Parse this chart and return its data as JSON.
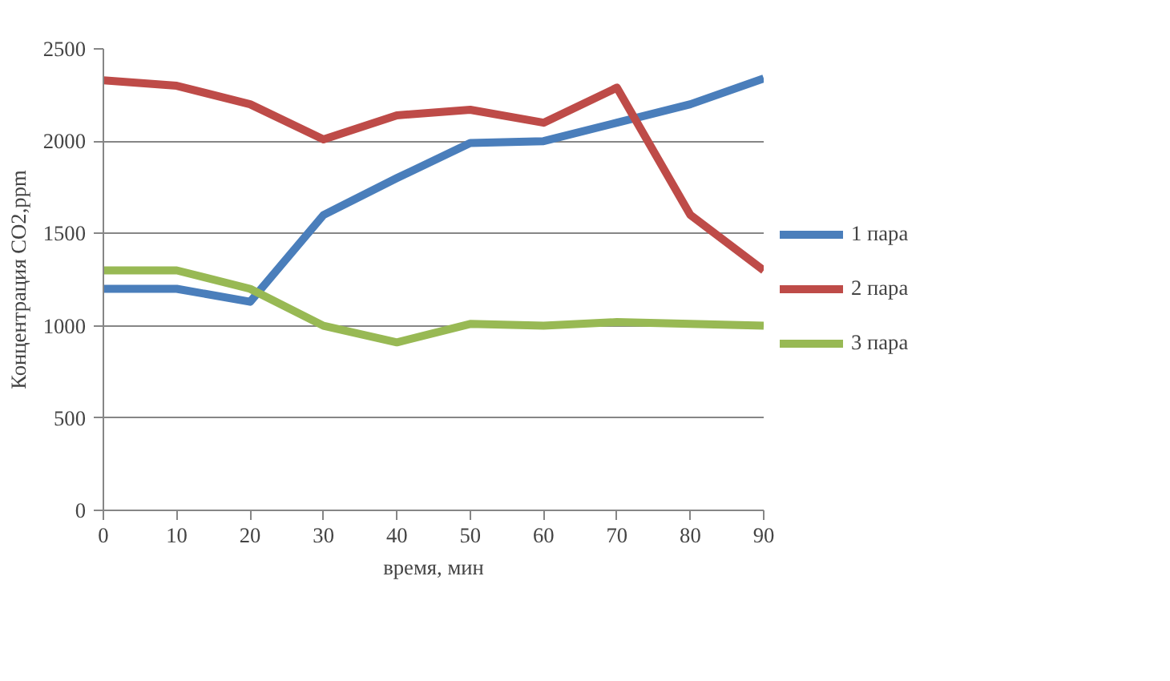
{
  "chart_data": {
    "type": "line",
    "xlabel": "время, мин",
    "ylabel": "Концентрация CO2,ppm",
    "x": [
      0,
      10,
      20,
      30,
      40,
      50,
      60,
      70,
      80,
      90
    ],
    "xlim": [
      0,
      90
    ],
    "xticks": [
      0,
      10,
      20,
      30,
      40,
      50,
      60,
      70,
      80,
      90
    ],
    "ylim": [
      0,
      2500
    ],
    "yticks": [
      0,
      500,
      1000,
      1500,
      2000,
      2500
    ],
    "grid": "y",
    "legend": "right",
    "marker": "none",
    "line_style": "solid",
    "series": [
      {
        "name": "1 пара",
        "color": "#4a7ebb",
        "values": [
          1200,
          1200,
          1130,
          1600,
          1800,
          1990,
          2000,
          2100,
          2200,
          2340
        ]
      },
      {
        "name": "2 пара",
        "color": "#be4b48",
        "values": [
          2330,
          2300,
          2200,
          2010,
          2140,
          2170,
          2100,
          2290,
          1600,
          1300
        ]
      },
      {
        "name": "3 пара",
        "color": "#98b954",
        "values": [
          1300,
          1300,
          1200,
          1000,
          910,
          1010,
          1000,
          1020,
          1010,
          1000
        ]
      }
    ]
  }
}
